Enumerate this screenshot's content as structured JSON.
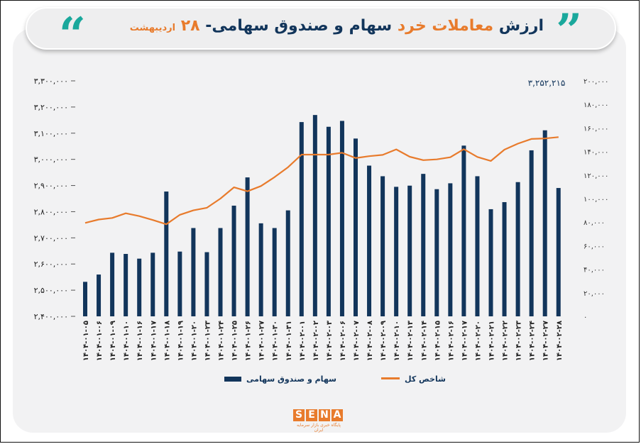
{
  "header": {
    "part1": "ارزش",
    "part2": "معاملات خرد",
    "part3": "سهام و صندوق سهامی- ",
    "part4": "۲۸",
    "part5": "اردیبهشت"
  },
  "colors": {
    "bar": "#12355b",
    "line": "#e87b2c",
    "accent": "#1aa89c"
  },
  "logo": {
    "letters": [
      "S",
      "E",
      "N",
      "A"
    ],
    "tagline": "پایگاه خبری بازار سرمایه ایران"
  },
  "chart_data": {
    "type": "bar",
    "categories": [
      "۱۴۰۴-۰۱-۰۵",
      "۱۴۰۴-۰۱-۰۶",
      "۱۴۰۴-۰۱-۰۹",
      "۱۴۰۴-۰۱-۱۰",
      "۱۴۰۴-۰۱-۱۶",
      "۱۴۰۴-۰۱-۱۷",
      "۱۴۰۴-۰۱-۱۸",
      "۱۴۰۴-۰۱-۱۹",
      "۱۴۰۴-۰۱-۲۰",
      "۱۴۰۴-۰۱-۲۳",
      "۱۴۰۴-۰۱-۲۴",
      "۱۴۰۴-۰۱-۲۵",
      "۱۴۰۴-۰۱-۲۶",
      "۱۴۰۴-۰۱-۲۷",
      "۱۴۰۴-۰۱-۳۰",
      "۱۴۰۴-۰۱-۳۱",
      "۱۴۰۴-۰۲-۰۱",
      "۱۴۰۴-۰۲-۰۲",
      "۱۴۰۴-۰۲-۰۳",
      "۱۴۰۴-۰۲-۰۶",
      "۱۴۰۴-۰۲-۰۷",
      "۱۴۰۴-۰۲-۰۸",
      "۱۴۰۴-۰۲-۰۹",
      "۱۴۰۴-۰۲-۱۰",
      "۱۴۰۴-۰۲-۱۳",
      "۱۴۰۴-۰۲-۱۴",
      "۱۴۰۴-۰۲-۱۵",
      "۱۴۰۴-۰۲-۱۶",
      "۱۴۰۴-۰۲-۱۷",
      "۱۴۰۴-۰۲-۲۰",
      "۱۴۰۴-۰۲-۲۱",
      "۱۴۰۴-۰۲-۲۲",
      "۱۴۰۴-۰۲-۲۳",
      "۱۴۰۴-۰۲-۲۴",
      "۱۴۰۴-۰۲-۲۷",
      "۱۴۰۴-۰۲-۲۸"
    ],
    "series": [
      {
        "name": "سهام و صندوق سهامی",
        "type": "bar",
        "axis": "left",
        "values": [
          29300,
          35500,
          54000,
          53000,
          49000,
          54000,
          106000,
          55000,
          75000,
          54500,
          75000,
          94000,
          118000,
          79000,
          75000,
          90000,
          165000,
          171000,
          161000,
          166000,
          151000,
          128000,
          119000,
          110000,
          111000,
          121000,
          108000,
          113000,
          145000,
          119000,
          91000,
          97000,
          114000,
          141000,
          158000,
          109000
        ]
      },
      {
        "name": "شاخص کل",
        "type": "line",
        "axis": "right",
        "values": [
          2757000,
          2770000,
          2776000,
          2794000,
          2783000,
          2768000,
          2752000,
          2788000,
          2805000,
          2815000,
          2850000,
          2893000,
          2878000,
          2898000,
          2932000,
          2970000,
          3018000,
          3018000,
          3018000,
          3025000,
          3005000,
          3012000,
          3017000,
          3038000,
          3010000,
          2997000,
          3000000,
          3008000,
          3039000,
          3009000,
          2994000,
          3037000,
          3060000,
          3078000,
          3080000,
          3085000
        ]
      }
    ],
    "left_axis": {
      "min": 0,
      "max": 200000,
      "ticks": [
        "۰",
        "۲۰,۰۰۰",
        "۴۰,۰۰۰",
        "۶۰,۰۰۰",
        "۸۰,۰۰۰",
        "۱۰۰,۰۰۰",
        "۱۲۰,۰۰۰",
        "۱۴۰,۰۰۰",
        "۱۶۰,۰۰۰",
        "۱۸۰,۰۰۰",
        "۲۰۰,۰۰۰"
      ]
    },
    "right_axis": {
      "min": 2400000,
      "max": 3300000,
      "ticks": [
        "۲,۴۰۰,۰۰۰",
        "۲,۵۰۰,۰۰۰",
        "۲,۶۰۰,۰۰۰",
        "۲,۷۰۰,۰۰۰",
        "۲,۸۰۰,۰۰۰",
        "۲,۹۰۰,۰۰۰",
        "۳,۰۰۰,۰۰۰",
        "۳,۱۰۰,۰۰۰",
        "۳,۲۰۰,۰۰۰",
        "۳,۳۰۰,۰۰۰"
      ]
    },
    "annotation": "۳,۲۵۲,۲۱۵",
    "legend": [
      "سهام و صندوق سهامی",
      "شاخص کل"
    ],
    "legend_placement": "bottom",
    "grid": false
  }
}
